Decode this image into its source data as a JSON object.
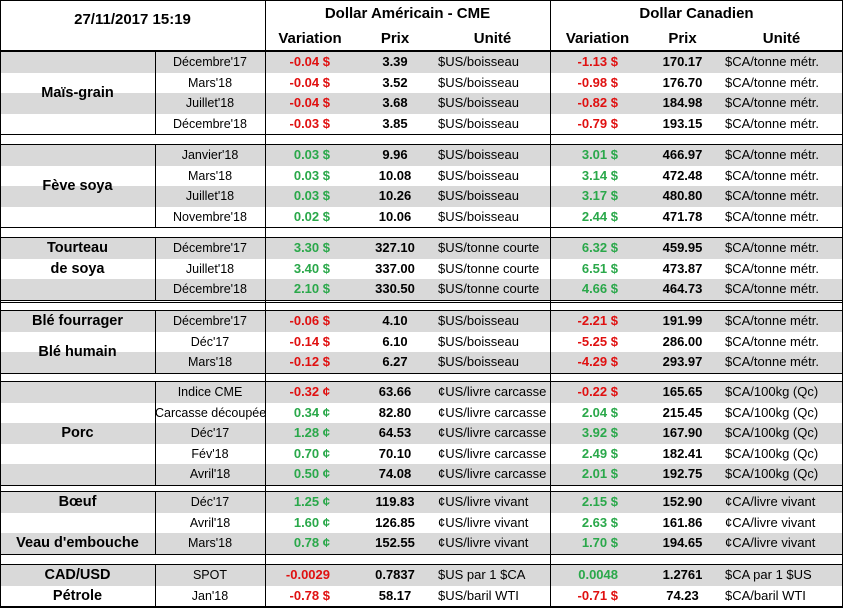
{
  "header": {
    "datetime": "27/11/2017 15:19",
    "us_title": "Dollar Américain - CME",
    "ca_title": "Dollar Canadien",
    "us_columns": [
      "Variation",
      "Prix",
      "Unité"
    ],
    "ca_columns": [
      "Variation",
      "Prix",
      "Unité"
    ]
  },
  "groups": [
    {
      "labels": [
        "Maïs-grain"
      ],
      "rows": [
        [
          "Décembre'17",
          "-0.04 $",
          "3.39",
          "$US/boisseau",
          "-1.13 $",
          "170.17",
          "$CA/tonne métr."
        ],
        [
          "Mars'18",
          "-0.04 $",
          "3.52",
          "$US/boisseau",
          "-0.98 $",
          "176.70",
          "$CA/tonne métr."
        ],
        [
          "Juillet'18",
          "-0.04 $",
          "3.68",
          "$US/boisseau",
          "-0.82 $",
          "184.98",
          "$CA/tonne métr."
        ],
        [
          "Décembre'18",
          "-0.03 $",
          "3.85",
          "$US/boisseau",
          "-0.79 $",
          "193.15",
          "$CA/tonne métr."
        ]
      ]
    },
    {
      "labels": [
        "Fève soya"
      ],
      "rows": [
        [
          "Janvier'18",
          "0.03 $",
          "9.96",
          "$US/boisseau",
          "3.01 $",
          "466.97",
          "$CA/tonne métr."
        ],
        [
          "Mars'18",
          "0.03 $",
          "10.08",
          "$US/boisseau",
          "3.14 $",
          "472.48",
          "$CA/tonne métr."
        ],
        [
          "Juillet'18",
          "0.03 $",
          "10.26",
          "$US/boisseau",
          "3.17 $",
          "480.80",
          "$CA/tonne métr."
        ],
        [
          "Novembre'18",
          "0.02 $",
          "10.06",
          "$US/boisseau",
          "2.44 $",
          "471.78",
          "$CA/tonne métr."
        ]
      ]
    },
    {
      "labels": [
        "Tourteau",
        "de soya"
      ],
      "rows": [
        [
          "Décembre'17",
          "3.30 $",
          "327.10",
          "$US/tonne courte",
          "6.32 $",
          "459.95",
          "$CA/tonne métr."
        ],
        [
          "Juillet'18",
          "3.40 $",
          "337.00",
          "$US/tonne courte",
          "6.51 $",
          "473.87",
          "$CA/tonne métr."
        ],
        [
          "Décembre'18",
          "2.10 $",
          "330.50",
          "$US/tonne courte",
          "4.66 $",
          "464.73",
          "$CA/tonne métr."
        ]
      ]
    },
    {
      "labels": [
        "Blé fourrager",
        "Blé humain"
      ],
      "rows": [
        [
          "Décembre'17",
          "-0.06 $",
          "4.10",
          "$US/boisseau",
          "-2.21 $",
          "191.99",
          "$CA/tonne métr."
        ],
        [
          "Déc'17",
          "-0.14 $",
          "6.10",
          "$US/boisseau",
          "-5.25 $",
          "286.00",
          "$CA/tonne métr."
        ],
        [
          "Mars'18",
          "-0.12 $",
          "6.27",
          "$US/boisseau",
          "-4.29 $",
          "293.97",
          "$CA/tonne métr."
        ]
      ]
    },
    {
      "labels": [
        "Porc"
      ],
      "rows": [
        [
          "Indice CME",
          "-0.32 ¢",
          "63.66",
          "¢US/livre carcasse",
          "-0.22 $",
          "165.65",
          "$CA/100kg (Qc)"
        ],
        [
          "Carcasse découpée",
          "0.34 ¢",
          "82.80",
          "¢US/livre carcasse",
          "2.04 $",
          "215.45",
          "$CA/100kg (Qc)"
        ],
        [
          "Déc'17",
          "1.28 ¢",
          "64.53",
          "¢US/livre carcasse",
          "3.92 $",
          "167.90",
          "$CA/100kg (Qc)"
        ],
        [
          "Fév'18",
          "0.70 ¢",
          "70.10",
          "¢US/livre carcasse",
          "2.49 $",
          "182.41",
          "$CA/100kg (Qc)"
        ],
        [
          "Avril'18",
          "0.50 ¢",
          "74.08",
          "¢US/livre carcasse",
          "2.01 $",
          "192.75",
          "$CA/100kg (Qc)"
        ]
      ]
    },
    {
      "labels": [
        "Bœuf",
        "Veau d'embouche"
      ],
      "rows": [
        [
          "Déc'17",
          "1.25 ¢",
          "119.83",
          "¢US/livre vivant",
          "2.15 $",
          "152.90",
          "¢CA/livre vivant"
        ],
        [
          "Avril'18",
          "1.60 ¢",
          "126.85",
          "¢US/livre vivant",
          "2.63 $",
          "161.86",
          "¢CA/livre vivant"
        ],
        [
          "Mars'18",
          "0.78 ¢",
          "152.55",
          "¢US/livre vivant",
          "1.70 $",
          "194.65",
          "¢CA/livre vivant"
        ]
      ]
    },
    {
      "labels": [
        "CAD/USD",
        "Pétrole"
      ],
      "rows": [
        [
          "SPOT",
          "-0.0029",
          "0.7837",
          "$US par 1 $CA",
          "0.0048",
          "1.2761",
          "$CA par 1 $US"
        ],
        [
          "Jan'18",
          "-0.78 $",
          "58.17",
          "$US/baril WTI",
          "-0.71 $",
          "74.23",
          "$CA/baril WTI"
        ]
      ]
    }
  ]
}
